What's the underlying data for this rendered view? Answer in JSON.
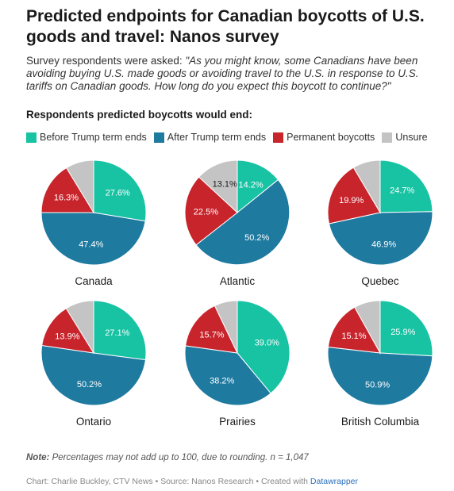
{
  "header": {
    "title": "Predicted endpoints for Canadian boycotts of U.S. goods and travel: Nanos survey",
    "desc_prefix": "Survey respondents were asked: ",
    "desc_quote": "\"As you might know, some Canadians have been avoiding buying U.S. made goods or avoiding travel to the U.S. in response to U.S. tariffs on Canadian goods. How long do you expect this boycott to continue?\"",
    "subhead": "Respondents predicted boycotts would end:"
  },
  "legend": [
    {
      "label": "Before Trump term ends",
      "color": "#17c3a3",
      "icon": "square-swatch"
    },
    {
      "label": "After Trump term ends",
      "color": "#1f7aa0",
      "icon": "square-swatch"
    },
    {
      "label": "Permanent boycotts",
      "color": "#c8242b",
      "icon": "square-swatch"
    },
    {
      "label": "Unsure",
      "color": "#c4c4c4",
      "icon": "square-swatch"
    }
  ],
  "chart_data": {
    "type": "pie",
    "categories": [
      "Before Trump term ends",
      "After Trump term ends",
      "Permanent boycotts",
      "Unsure"
    ],
    "colors": [
      "#17c3a3",
      "#1f7aa0",
      "#c8242b",
      "#c4c4c4"
    ],
    "charts": [
      {
        "name": "Canada",
        "values": [
          27.6,
          47.4,
          16.3,
          8.7
        ],
        "labels": [
          "27.6%",
          "47.4%",
          "16.3%",
          ""
        ]
      },
      {
        "name": "Atlantic",
        "values": [
          14.2,
          50.2,
          22.5,
          13.1
        ],
        "labels": [
          "14.2%",
          "50.2%",
          "22.5%",
          "13.1%"
        ]
      },
      {
        "name": "Quebec",
        "values": [
          24.7,
          46.9,
          19.9,
          8.5
        ],
        "labels": [
          "24.7%",
          "46.9%",
          "19.9%",
          ""
        ]
      },
      {
        "name": "Ontario",
        "values": [
          27.1,
          50.2,
          13.9,
          8.8
        ],
        "labels": [
          "27.1%",
          "50.2%",
          "13.9%",
          ""
        ]
      },
      {
        "name": "Prairies",
        "values": [
          39.0,
          38.2,
          15.7,
          7.1
        ],
        "labels": [
          "39.0%",
          "38.2%",
          "15.7%",
          ""
        ]
      },
      {
        "name": "British Columbia",
        "values": [
          25.9,
          50.9,
          15.1,
          8.1
        ],
        "labels": [
          "25.9%",
          "50.9%",
          "15.1%",
          ""
        ]
      }
    ]
  },
  "footer": {
    "note_label": "Note:",
    "note_text": " Percentages may not add up to 100, due to rounding. n = 1,047",
    "credit_text": "Chart: Charlie Buckley, CTV News • Source: Nanos Research • Created with ",
    "credit_link": "Datawrapper"
  }
}
